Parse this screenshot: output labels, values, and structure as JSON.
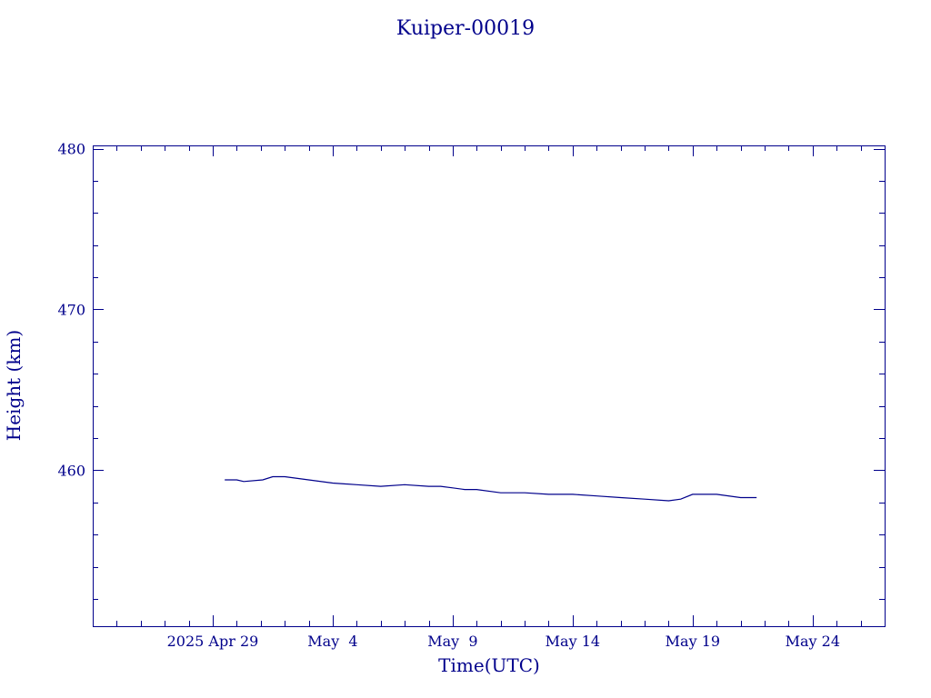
{
  "chart_data": {
    "type": "line",
    "title": "Kuiper-00019",
    "xlabel": "Time(UTC)",
    "ylabel": "Height (km)",
    "color": "#00008b",
    "grid": false,
    "xlim": [
      "2025-04-24",
      "2025-05-27"
    ],
    "ylim": [
      450.3,
      480.2
    ],
    "x_ticks": [
      {
        "date": "2025-04-29",
        "label": "2025 Apr 29"
      },
      {
        "date": "2025-05-04",
        "label": "May  4"
      },
      {
        "date": "2025-05-09",
        "label": "May  9"
      },
      {
        "date": "2025-05-14",
        "label": "May 14"
      },
      {
        "date": "2025-05-19",
        "label": "May 19"
      },
      {
        "date": "2025-05-24",
        "label": "May 24"
      }
    ],
    "y_ticks": [
      {
        "value": 460,
        "label": "460"
      },
      {
        "value": 470,
        "label": "470"
      },
      {
        "value": 480,
        "label": "480"
      }
    ],
    "series": [
      {
        "x": [
          "2025-04-29 12:00",
          "2025-04-30 00:00",
          "2025-04-30 07:00",
          "2025-05-01 02:00",
          "2025-05-01 12:00",
          "2025-05-02 00:00",
          "2025-05-03 00:00",
          "2025-05-04 00:00",
          "2025-05-05 00:00",
          "2025-05-06 00:00",
          "2025-05-07 00:00",
          "2025-05-08 00:00",
          "2025-05-08 12:00",
          "2025-05-09 00:00",
          "2025-05-09 12:00",
          "2025-05-10 00:00",
          "2025-05-11 00:00",
          "2025-05-12 00:00",
          "2025-05-13 00:00",
          "2025-05-14 00:00",
          "2025-05-15 00:00",
          "2025-05-16 00:00",
          "2025-05-17 00:00",
          "2025-05-18 00:00",
          "2025-05-18 12:00",
          "2025-05-19 00:00",
          "2025-05-20 00:00",
          "2025-05-21 00:00",
          "2025-05-21 16:00"
        ],
        "y": [
          459.4,
          459.4,
          459.3,
          459.4,
          459.6,
          459.6,
          459.4,
          459.2,
          459.1,
          459.0,
          459.1,
          459.0,
          459.0,
          458.9,
          458.8,
          458.8,
          458.6,
          458.6,
          458.5,
          458.5,
          458.4,
          458.3,
          458.2,
          458.1,
          458.2,
          458.5,
          458.5,
          458.3,
          458.3
        ]
      }
    ]
  }
}
